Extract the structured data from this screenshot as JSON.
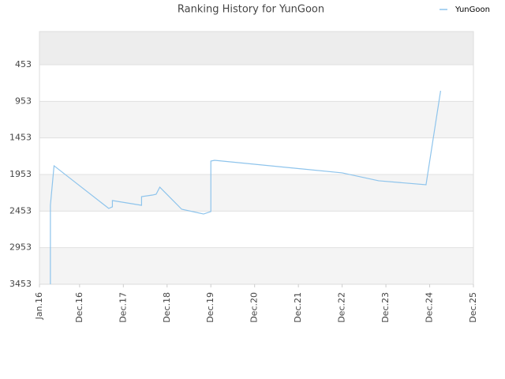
{
  "chart_data": {
    "type": "line",
    "title": "Ranking History for YunGoon",
    "x": [
      "2016-04",
      "2016-04",
      "2016-05",
      "2017-08",
      "2017-09",
      "2017-09",
      "2018-05",
      "2018-05",
      "2018-08",
      "2018-09",
      "2018-10",
      "2019-04",
      "2019-10",
      "2019-12",
      "2019-12",
      "2020-01",
      "2022-12",
      "2023-10",
      "2024-11",
      "2025-03"
    ],
    "series": [
      {
        "name": "YunGoon",
        "color": "#8ec4ec",
        "values": [
          3453,
          2374,
          1834,
          2417,
          2395,
          2309,
          2374,
          2255,
          2234,
          2223,
          2126,
          2428,
          2493,
          2460,
          1770,
          1759,
          1931,
          2039,
          2093,
          809
        ]
      }
    ],
    "xlim": [
      "2016-01",
      "2025-12"
    ],
    "xticks": [
      {
        "value": "2016-01",
        "label": "Jan.16"
      },
      {
        "value": "2016-12",
        "label": "Dec.16"
      },
      {
        "value": "2017-12",
        "label": "Dec.17"
      },
      {
        "value": "2018-12",
        "label": "Dec.18"
      },
      {
        "value": "2019-12",
        "label": "Dec.19"
      },
      {
        "value": "2020-12",
        "label": "Dec.20"
      },
      {
        "value": "2021-12",
        "label": "Dec.21"
      },
      {
        "value": "2022-12",
        "label": "Dec.22"
      },
      {
        "value": "2023-12",
        "label": "Dec.23"
      },
      {
        "value": "2024-12",
        "label": "Dec.24"
      },
      {
        "value": "2025-12",
        "label": "Dec.25"
      }
    ],
    "ylim": [
      3453,
      0
    ],
    "yticks": [
      453,
      953,
      1453,
      1953,
      2453,
      2953,
      3453
    ],
    "grid": true,
    "legend": "top-right"
  }
}
